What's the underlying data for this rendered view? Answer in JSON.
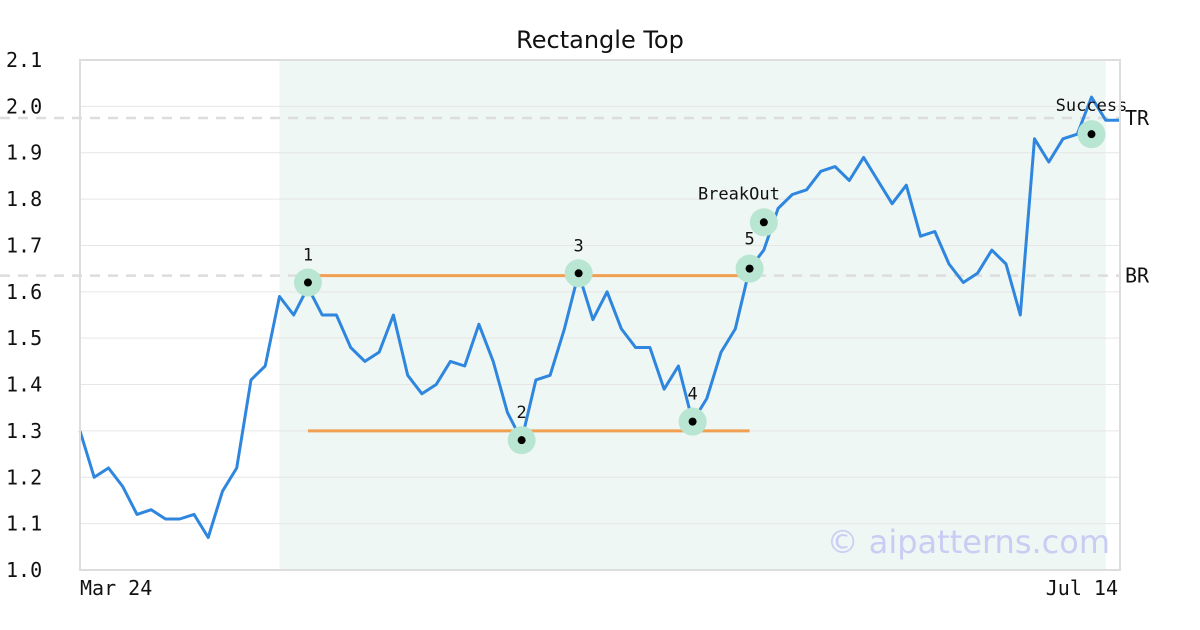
{
  "chart_data": {
    "type": "line",
    "title": "Rectangle Top",
    "xlabel": "",
    "ylabel": "",
    "x_tick_labels": [
      "Mar 24",
      "Jul 14"
    ],
    "y_ticks": [
      1.0,
      1.1,
      1.2,
      1.3,
      1.4,
      1.5,
      1.6,
      1.7,
      1.8,
      1.9,
      2.0,
      2.1
    ],
    "y_tick_labels": [
      "1.0",
      "1.1",
      "1.2",
      "1.3",
      "1.4",
      "1.5",
      "1.6",
      "1.7",
      "1.8",
      "1.9",
      "2.0",
      "2.1"
    ],
    "ylim": [
      1.0,
      2.1
    ],
    "grid": true,
    "legend": "none",
    "series": [
      {
        "color": "#2e86de",
        "values": [
          1.3,
          1.2,
          1.22,
          1.18,
          1.12,
          1.13,
          1.11,
          1.11,
          1.12,
          1.07,
          1.17,
          1.22,
          1.41,
          1.44,
          1.59,
          1.55,
          1.61,
          1.55,
          1.55,
          1.48,
          1.45,
          1.47,
          1.55,
          1.42,
          1.38,
          1.4,
          1.45,
          1.44,
          1.53,
          1.45,
          1.34,
          1.28,
          1.41,
          1.42,
          1.52,
          1.64,
          1.54,
          1.6,
          1.52,
          1.48,
          1.48,
          1.39,
          1.44,
          1.32,
          1.37,
          1.47,
          1.52,
          1.65,
          1.69,
          1.78,
          1.81,
          1.82,
          1.86,
          1.87,
          1.84,
          1.89,
          1.84,
          1.79,
          1.83,
          1.72,
          1.73,
          1.66,
          1.62,
          1.64,
          1.69,
          1.66,
          1.55,
          1.93,
          1.88,
          1.93,
          1.94,
          2.02,
          1.97,
          1.97
        ]
      }
    ],
    "shaded_range": {
      "from_index": 14,
      "to_index": 72,
      "color": "#eef7f3"
    },
    "reference_lines": [
      {
        "label": "TR",
        "y": 1.975,
        "color": "#dddddd"
      },
      {
        "label": "BR",
        "y": 1.635,
        "color": "#dddddd"
      }
    ],
    "segments": [
      {
        "x_from": 16,
        "x_to": 47,
        "y": 1.635,
        "color": "#f0a050"
      },
      {
        "x_from": 16,
        "x_to": 47,
        "y": 1.3,
        "color": "#f0a050"
      }
    ],
    "points": [
      {
        "label": "1",
        "x": 16,
        "y": 1.62,
        "label_pos": "above"
      },
      {
        "label": "2",
        "x": 31,
        "y": 1.28,
        "label_pos": "above"
      },
      {
        "label": "3",
        "x": 35,
        "y": 1.64,
        "label_pos": "above"
      },
      {
        "label": "4",
        "x": 43,
        "y": 1.32,
        "label_pos": "above"
      },
      {
        "label": "5",
        "x": 47,
        "y": 1.65,
        "label_pos": "above-left"
      },
      {
        "label": "BreakOut",
        "x": 48,
        "y": 1.75,
        "label_pos": "above-left"
      },
      {
        "label": "Success",
        "x": 71,
        "y": 1.94,
        "label_pos": "above"
      }
    ],
    "watermark": "© aipatterns.com",
    "colors": {
      "line": "#2e86de",
      "marker_halo": "#b8e6d2",
      "marker_dot": "#000000",
      "grid": "#e6e6e6",
      "frame": "#dddddd"
    }
  }
}
